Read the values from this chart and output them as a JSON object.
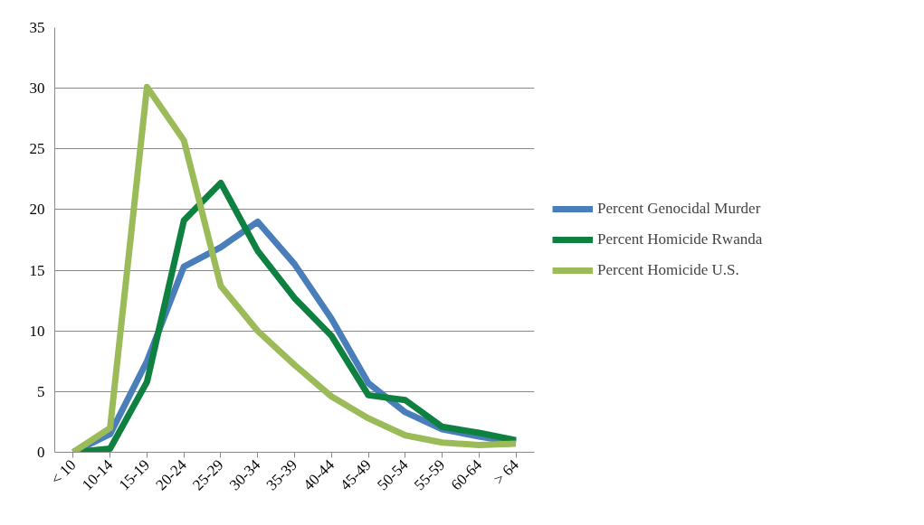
{
  "chart_data": {
    "type": "line",
    "categories": [
      "< 10",
      "10-14",
      "15-19",
      "20-24",
      "25-29",
      "30-34",
      "35-39",
      "40-44",
      "45-49",
      "50-54",
      "55-59",
      "60-64",
      "> 64"
    ],
    "series": [
      {
        "name": "Percent Genocidal Murder",
        "color": "#4a7ebb",
        "values": [
          0,
          1.5,
          7.5,
          15.3,
          16.9,
          19,
          15.5,
          11,
          5.7,
          3.3,
          1.9,
          1.3,
          0.8
        ]
      },
      {
        "name": "Percent Homicide Rwanda",
        "color": "#0e8040",
        "values": [
          0,
          0.3,
          5.8,
          19.1,
          22.2,
          16.6,
          12.7,
          9.6,
          4.7,
          4.3,
          2.1,
          1.6,
          1.0
        ]
      },
      {
        "name": "Percent Homicide U.S.",
        "color": "#9bbb59",
        "values": [
          0,
          2,
          30.1,
          25.7,
          13.7,
          10,
          7.2,
          4.6,
          2.8,
          1.4,
          0.8,
          0.6,
          0.7
        ]
      }
    ],
    "ylim": [
      0,
      35
    ],
    "yticks": [
      0,
      5,
      10,
      15,
      20,
      25,
      30,
      35
    ],
    "grid": "y",
    "legend": "right",
    "marker": "none",
    "line_style": "solid"
  }
}
